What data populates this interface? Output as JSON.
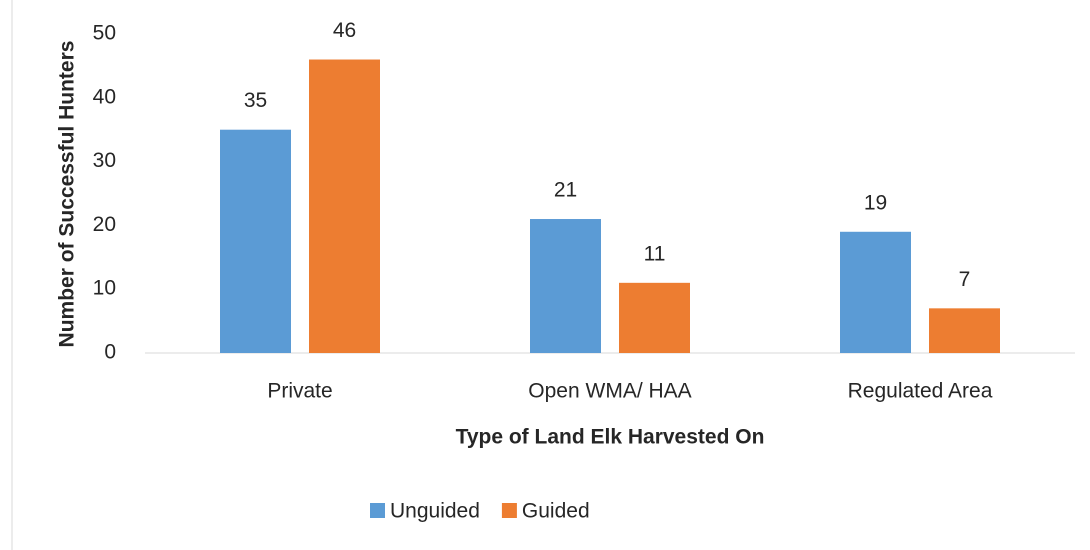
{
  "chart_data": {
    "type": "bar",
    "y_label": "Number of Successful Hunters",
    "x_label": "Type of Land Elk Harvested On",
    "categories": [
      "Private",
      "Open WMA/ HAA",
      "Regulated Area"
    ],
    "series": [
      {
        "name": "Unguided",
        "color": "#5b9bd5",
        "values": [
          35,
          21,
          19
        ]
      },
      {
        "name": "Guided",
        "color": "#ed7d31",
        "values": [
          46,
          11,
          7
        ]
      }
    ],
    "ylim": [
      0,
      50
    ],
    "yticks": [
      0,
      10,
      20,
      30,
      40,
      50
    ],
    "grid": false,
    "legend": "bottom"
  }
}
